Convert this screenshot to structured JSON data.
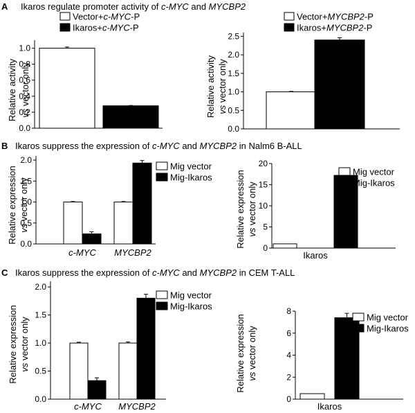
{
  "panels": [
    {
      "letter": "A",
      "title": [
        {
          "t": "Ikaros regulate promoter activity of "
        },
        {
          "t": "c-MYC",
          "i": true
        },
        {
          "t": " and "
        },
        {
          "t": "MYCBP2",
          "i": true
        }
      ]
    },
    {
      "letter": "B",
      "title": [
        {
          "t": "Ikaros suppress the expression of "
        },
        {
          "t": "c-MYC",
          "i": true
        },
        {
          "t": " and "
        },
        {
          "t": "MYCBP2",
          "i": true
        },
        {
          "t": " in Nalm6 B-ALL"
        }
      ]
    },
    {
      "letter": "C",
      "title": [
        {
          "t": "Ikaros suppress the expression of "
        },
        {
          "t": "c-MYC",
          "i": true
        },
        {
          "t": " and "
        },
        {
          "t": "MYCBP2",
          "i": true
        },
        {
          "t": " in CEM T-ALL"
        }
      ]
    }
  ],
  "colors": {
    "control": "#ffffff",
    "treated": "#000000",
    "stroke": "#000000"
  },
  "chart_data": [
    {
      "id": "A1",
      "type": "bar",
      "panel": "A",
      "ylabel": [
        "Relative activity",
        [
          {
            "t": "vs",
            "i": true
          },
          {
            "t": " vector only"
          }
        ]
      ],
      "ylim": [
        0,
        1.1
      ],
      "yticks": [
        "0.0",
        "0.2",
        "0.4",
        "0.6",
        "0.8",
        "1.0"
      ],
      "categories": [
        ""
      ],
      "series": [
        {
          "name": [
            {
              "t": "Vector+"
            },
            {
              "t": "c-MYC",
              "i": true
            },
            {
              "t": "-P"
            }
          ],
          "fill": "control",
          "values": [
            1.0
          ],
          "errors": [
            0.015
          ]
        },
        {
          "name": [
            {
              "t": "Ikaros+"
            },
            {
              "t": "c-MYC",
              "i": true
            },
            {
              "t": "-P"
            }
          ],
          "fill": "treated",
          "values": [
            0.28
          ],
          "errors": [
            0.004
          ]
        }
      ]
    },
    {
      "id": "A2",
      "type": "bar",
      "panel": "A",
      "ylabel": [
        "Relative activity",
        [
          {
            "t": "vs",
            "i": true
          },
          {
            "t": " vector only"
          }
        ]
      ],
      "ylim": [
        0,
        2.6
      ],
      "yticks": [
        "0.0",
        "0.5",
        "1.0",
        "1.5",
        "2.0",
        "2.5"
      ],
      "categories": [
        ""
      ],
      "series": [
        {
          "name": [
            {
              "t": "Vector+"
            },
            {
              "t": "MYCBP2",
              "i": true
            },
            {
              "t": "-P"
            }
          ],
          "fill": "control",
          "values": [
            1.0
          ],
          "errors": [
            0.012
          ]
        },
        {
          "name": [
            {
              "t": "Ikaros+"
            },
            {
              "t": "MYCBP2",
              "i": true
            },
            {
              "t": "-P"
            }
          ],
          "fill": "treated",
          "values": [
            2.4
          ],
          "errors": [
            0.06
          ]
        }
      ]
    },
    {
      "id": "B1",
      "type": "bar",
      "panel": "B",
      "ylabel": [
        "Relative expression",
        [
          {
            "t": "vs",
            "i": true
          },
          {
            "t": " vector only"
          }
        ]
      ],
      "ylim": [
        0,
        2.1
      ],
      "yticks": [
        "0.0",
        "0.5",
        "1.0",
        "1.5",
        "2.0"
      ],
      "categories": [
        [
          {
            "t": "c-MYC",
            "i": true
          }
        ],
        [
          {
            "t": "MYCBP2",
            "i": true
          }
        ]
      ],
      "series": [
        {
          "name": [
            {
              "t": "Mig vector"
            }
          ],
          "fill": "control",
          "values": [
            1.0,
            1.0
          ],
          "errors": [
            0.012,
            0.012
          ]
        },
        {
          "name": [
            {
              "t": "Mig-Ikaros"
            }
          ],
          "fill": "treated",
          "values": [
            0.24,
            1.93
          ],
          "errors": [
            0.05,
            0.06
          ]
        }
      ]
    },
    {
      "id": "B2",
      "type": "bar",
      "panel": "B",
      "ylabel": [
        "Relative expression",
        [
          {
            "t": "vs",
            "i": true
          },
          {
            "t": " vector only"
          }
        ]
      ],
      "ylim": [
        0,
        20
      ],
      "yticks": [
        "0",
        "5",
        "10",
        "15",
        "20"
      ],
      "categories": [
        [
          {
            "t": "Ikaros"
          }
        ]
      ],
      "series": [
        {
          "name": [
            {
              "t": "Mig vector"
            }
          ],
          "fill": "control",
          "values": [
            1.0
          ],
          "errors": [
            0
          ]
        },
        {
          "name": [
            {
              "t": "Mig-Ikaros"
            }
          ],
          "fill": "treated",
          "values": [
            17.2
          ],
          "errors": [
            0.8
          ]
        }
      ]
    },
    {
      "id": "C1",
      "type": "bar",
      "panel": "C",
      "ylabel": [
        "Relative expression",
        [
          {
            "t": "vs",
            "i": true
          },
          {
            "t": " vector only"
          }
        ]
      ],
      "ylim": [
        0,
        2.1
      ],
      "yticks": [
        "0.0",
        "0.5",
        "1.0",
        "1.5",
        "2.0"
      ],
      "categories": [
        [
          {
            "t": "c-MYC",
            "i": true
          }
        ],
        [
          {
            "t": "MYCBP2",
            "i": true
          }
        ]
      ],
      "series": [
        {
          "name": [
            {
              "t": "Mig vector"
            }
          ],
          "fill": "control",
          "values": [
            1.0,
            1.0
          ],
          "errors": [
            0.015,
            0.02
          ]
        },
        {
          "name": [
            {
              "t": "Mig-Ikaros"
            }
          ],
          "fill": "treated",
          "values": [
            0.33,
            1.8
          ],
          "errors": [
            0.05,
            0.07
          ]
        }
      ]
    },
    {
      "id": "C2",
      "type": "bar",
      "panel": "C",
      "ylabel": [
        "Relative expression",
        [
          {
            "t": "vs",
            "i": true
          },
          {
            "t": " vector only"
          }
        ]
      ],
      "ylim": [
        0,
        8
      ],
      "yticks": [
        "0",
        "2",
        "4",
        "6",
        "8"
      ],
      "categories": [
        [
          {
            "t": "Ikaros"
          }
        ]
      ],
      "series": [
        {
          "name": [
            {
              "t": "Mig vector"
            }
          ],
          "fill": "control",
          "values": [
            0.5
          ],
          "errors": [
            0
          ]
        },
        {
          "name": [
            {
              "t": "Mig-Ikaros"
            }
          ],
          "fill": "treated",
          "values": [
            7.4
          ],
          "errors": [
            0.4
          ]
        }
      ]
    }
  ]
}
